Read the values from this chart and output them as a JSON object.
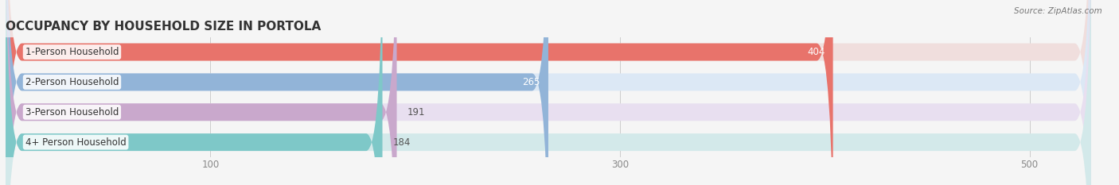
{
  "title": "OCCUPANCY BY HOUSEHOLD SIZE IN PORTOLA",
  "source": "Source: ZipAtlas.com",
  "categories": [
    "1-Person Household",
    "2-Person Household",
    "3-Person Household",
    "4+ Person Household"
  ],
  "values": [
    404,
    265,
    191,
    184
  ],
  "bar_colors": [
    "#e8736b",
    "#92b4d8",
    "#c9a8cc",
    "#7ec8c8"
  ],
  "bar_bg_colors": [
    "#f0dedd",
    "#dce8f5",
    "#e8dff0",
    "#d3e9ea"
  ],
  "xlim": [
    0,
    530
  ],
  "xticks": [
    100,
    300,
    500
  ],
  "label_fontsize": 8.5,
  "value_fontsize": 8.5,
  "title_fontsize": 11,
  "background_color": "#f5f5f5",
  "bar_height": 0.58,
  "rounding_size": 8
}
